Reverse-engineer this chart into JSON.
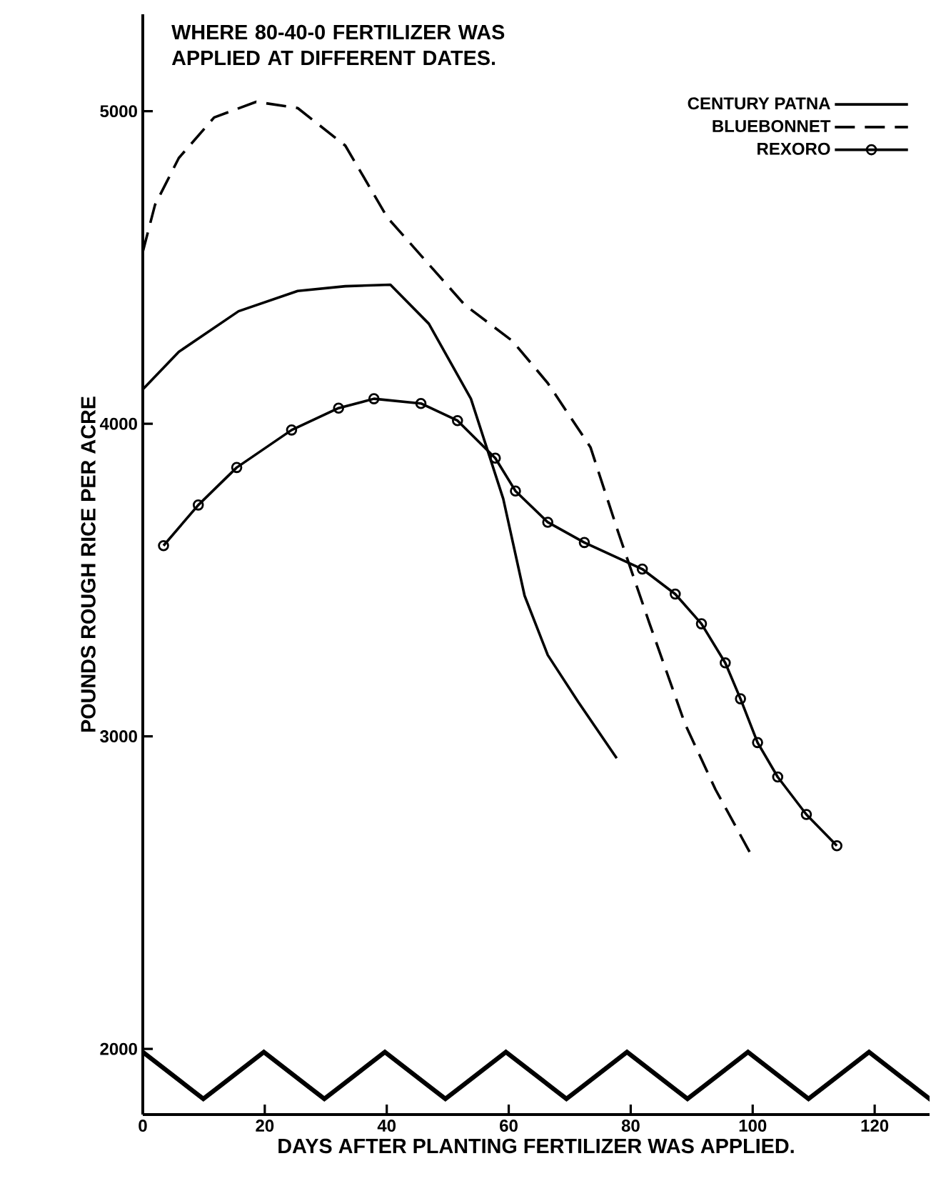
{
  "chart_data": {
    "type": "line",
    "title": "WHERE 80-40-0 FERTILIZER WAS APPLIED AT DIFFERENT DATES.",
    "xlabel": "DAYS AFTER PLANTING FERTILIZER WAS APPLIED.",
    "ylabel": "POUNDS ROUGH RICE PER ACRE",
    "xlim": [
      0,
      129
    ],
    "xticks": [
      0,
      20,
      40,
      60,
      80,
      100,
      120
    ],
    "ylim": [
      1790,
      5310
    ],
    "yticks": [
      2000,
      3000,
      4000,
      5000
    ],
    "legend": "top right",
    "grid": false,
    "series": [
      {
        "name": "CENTURY PATNA",
        "color": "#000000",
        "line_style": "solid",
        "marker": "none",
        "x": [
          0,
          5.9,
          15.7,
          25.4,
          33.2,
          40.6,
          46.9,
          53.8,
          59.1,
          62.6,
          66.4,
          71.4,
          77.7
        ],
        "values": [
          4110,
          4230,
          4360,
          4425,
          4440,
          4445,
          4320,
          4080,
          3760,
          3450,
          3260,
          3110,
          2930
        ]
      },
      {
        "name": "BLUEBONNET",
        "color": "#000000",
        "line_style": "dashed",
        "marker": "none",
        "x": [
          0,
          2.0,
          5.9,
          11.7,
          18.6,
          25.4,
          33.2,
          40.1,
          46.9,
          52.8,
          60.6,
          66.4,
          73.4,
          78.0,
          83.1,
          88.9,
          93.9,
          99.5
        ],
        "values": [
          4550,
          4700,
          4850,
          4980,
          5030,
          5010,
          4890,
          4660,
          4510,
          4380,
          4265,
          4130,
          3925,
          3650,
          3360,
          3040,
          2830,
          2630
        ]
      },
      {
        "name": "REXORO",
        "color": "#000000",
        "line_style": "solid",
        "marker": "circle",
        "x": [
          3.4,
          9.1,
          15.4,
          24.4,
          32.1,
          37.9,
          45.6,
          51.6,
          57.8,
          61.1,
          66.4,
          72.4,
          81.9,
          87.3,
          91.6,
          95.5,
          98.0,
          100.8,
          104.1,
          108.8,
          113.8
        ],
        "values": [
          3610,
          3740,
          3860,
          3980,
          4050,
          4080,
          4065,
          4010,
          3890,
          3785,
          3685,
          3620,
          3535,
          3455,
          3360,
          3235,
          3120,
          2980,
          2870,
          2750,
          2650
        ]
      }
    ]
  }
}
